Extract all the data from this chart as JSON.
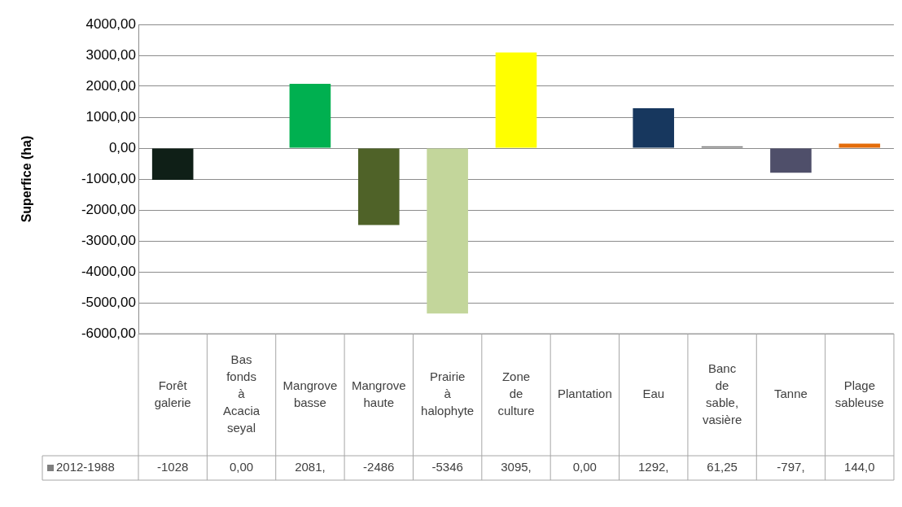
{
  "chart_data": {
    "type": "bar",
    "ylabel": "Superfice (ha)",
    "categories": [
      "Forêt galerie",
      "Bas fonds à Acacia seyal",
      "Mangrove basse",
      "Mangrove haute",
      "Prairie à halophyte",
      "Zone de culture",
      "Plantation",
      "Eau",
      "Banc de sable, vasière",
      "Tanne",
      "Plage sableuse"
    ],
    "series": [
      {
        "name": "2012-1988",
        "color": "#7f7f7f",
        "colors": [
          "#0f1f17",
          "#7f7f7f",
          "#00b050",
          "#4f6228",
          "#c3d69b",
          "#ffff00",
          "#7f7f7f",
          "#17375e",
          "#7f7f7f",
          "#4f4f6a",
          "#e46c0a"
        ],
        "values": [
          -1028,
          0,
          2081,
          -2486,
          -5346,
          3095,
          0,
          1292,
          61.25,
          -797,
          144
        ],
        "value_labels": [
          "-1028",
          "0,00",
          "2081,",
          "-2486",
          "-5346",
          "3095,",
          "0,00",
          "1292,",
          "61,25",
          "-797,",
          "144,0"
        ]
      }
    ],
    "ylim": [
      -6000,
      4000
    ],
    "yticks": [
      {
        "value": -6000,
        "label": "-6000,00"
      },
      {
        "value": -5000,
        "label": "-5000,00"
      },
      {
        "value": -4000,
        "label": "-4000,00"
      },
      {
        "value": -3000,
        "label": "-3000,00"
      },
      {
        "value": -2000,
        "label": "-2000,00"
      },
      {
        "value": -1000,
        "label": "-1000,00"
      },
      {
        "value": 0,
        "label": "0,00"
      },
      {
        "value": 1000,
        "label": "1000,00"
      },
      {
        "value": 2000,
        "label": "2000,00"
      },
      {
        "value": 3000,
        "label": "3000,00"
      },
      {
        "value": 4000,
        "label": "4000,00"
      }
    ],
    "grid": "y",
    "legend": "bottom"
  }
}
